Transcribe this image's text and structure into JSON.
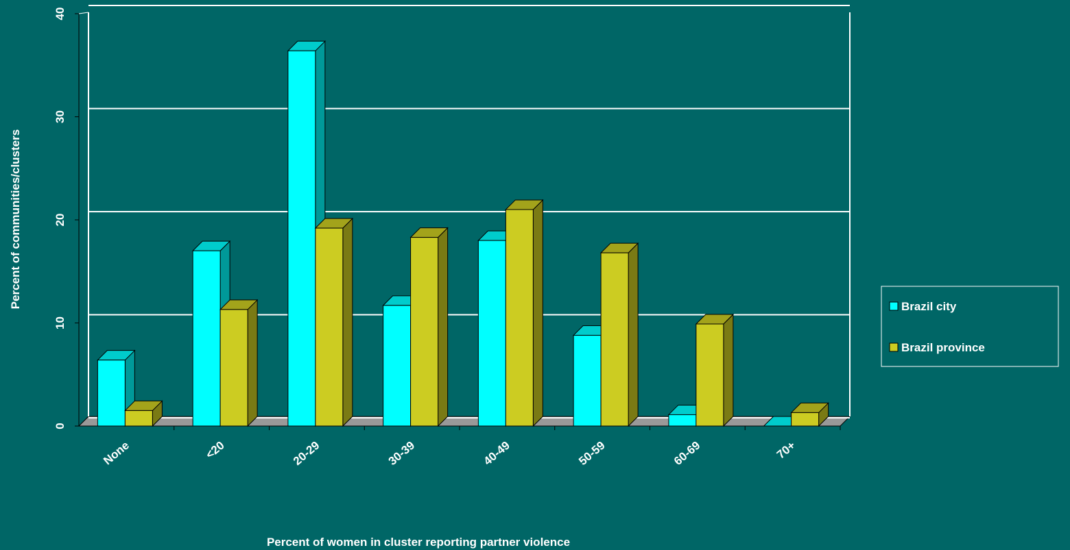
{
  "chart_data": {
    "type": "bar3d",
    "y_label": "Percent of communities/clusters",
    "x_label": "Percent of women in cluster reporting partner violence",
    "categories": [
      "None",
      "<20",
      "20-29",
      "30-39",
      "40-49",
      "50-59",
      "60-69",
      "70+"
    ],
    "series": [
      {
        "name": "Brazil city",
        "color": "#00ffff",
        "values": [
          6.4,
          17.0,
          36.4,
          11.7,
          18.0,
          8.8,
          1.1,
          0
        ]
      },
      {
        "name": "Brazil province",
        "color": "#cccc22",
        "values": [
          1.5,
          11.3,
          19.2,
          18.3,
          21.0,
          16.8,
          9.9,
          1.3
        ]
      }
    ],
    "ylim": [
      0,
      40
    ],
    "yticks": [
      0,
      10,
      20,
      30,
      40
    ],
    "grid": true
  }
}
